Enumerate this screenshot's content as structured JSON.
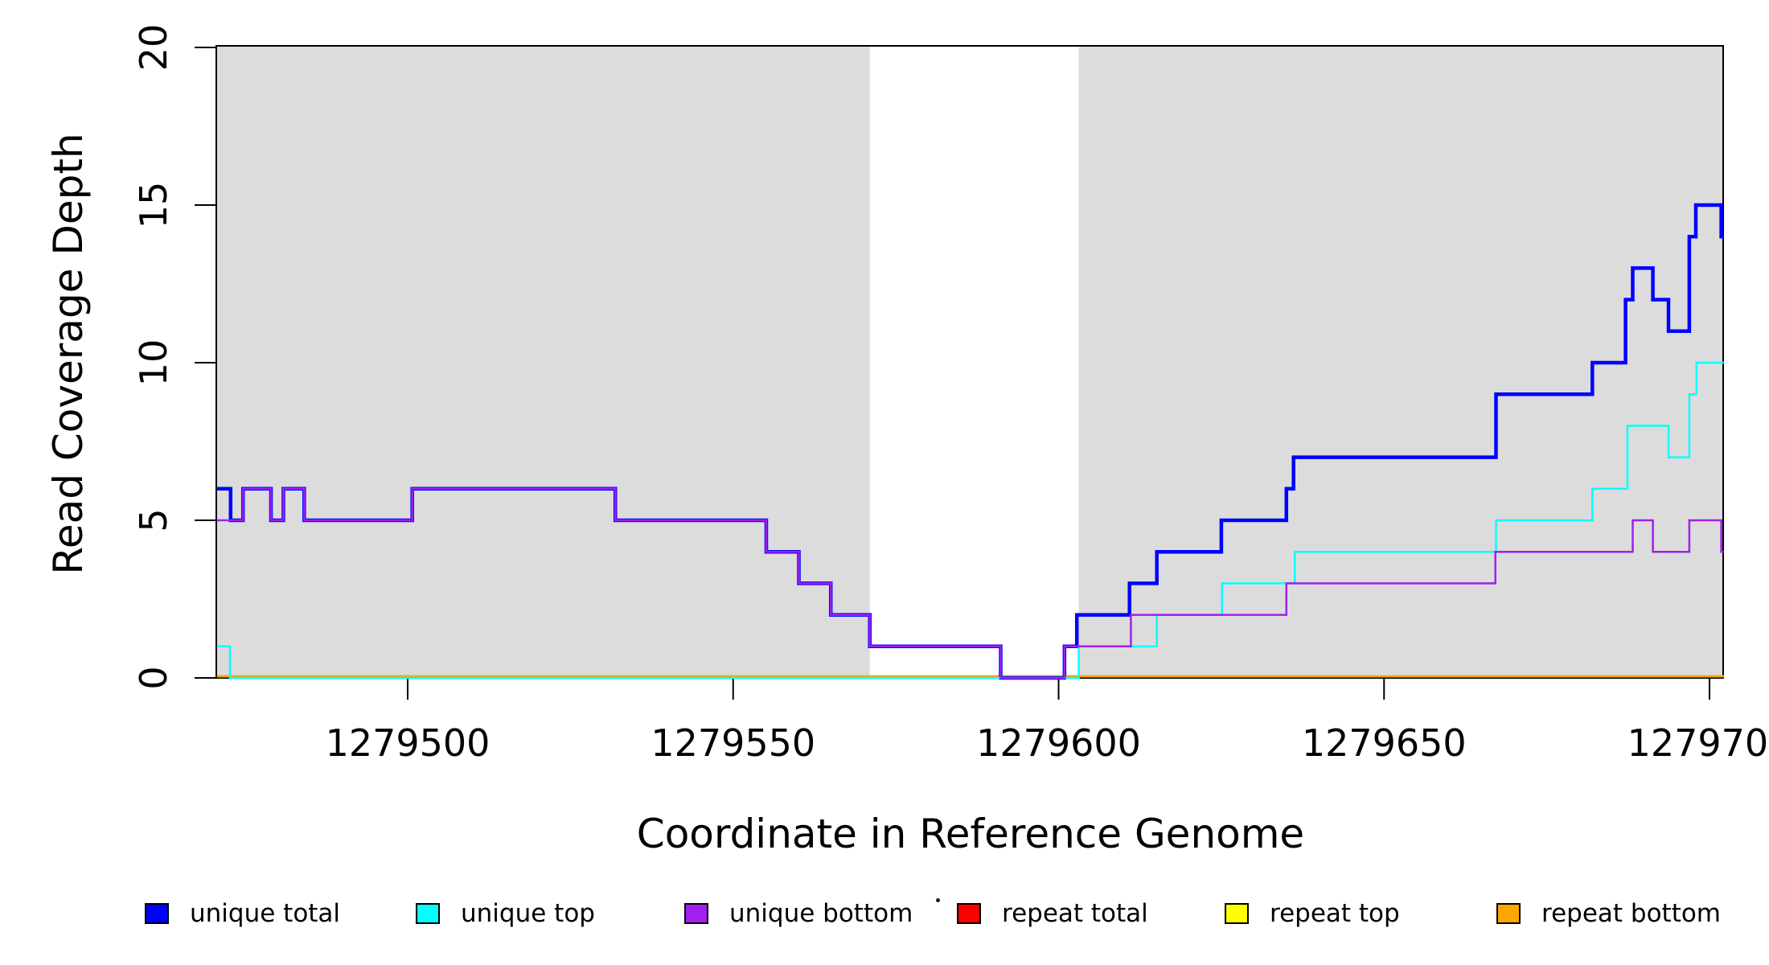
{
  "chart_data": {
    "type": "line",
    "subtype": "step-after-coverage",
    "title": "",
    "xlabel": "Coordinate in Reference Genome",
    "ylabel": "Read Coverage Depth",
    "xlim": [
      1279470.7,
      1279702.2
    ],
    "ylim": [
      0,
      20
    ],
    "x_ticks": [
      1279500,
      1279550,
      1279600,
      1279650,
      1279700
    ],
    "y_ticks": [
      0,
      5,
      10,
      15,
      20
    ],
    "grid": "off",
    "shaded_color": "#DCDCDC",
    "shaded_regions": [
      {
        "x0": 1279470.7,
        "x1": 1279571.0
      },
      {
        "x0": 1279603.1,
        "x1": 1279702.2
      }
    ],
    "draw_order": [
      "repeat total",
      "repeat top",
      "repeat bottom",
      "unique total",
      "unique top",
      "unique bottom"
    ],
    "series": [
      {
        "name": "unique total",
        "color": "#0000FF",
        "width": 4.5,
        "steps": [
          [
            1279470.7,
            6
          ],
          [
            1279472.8,
            5
          ],
          [
            1279474.7,
            6
          ],
          [
            1279479.0,
            5
          ],
          [
            1279480.9,
            6
          ],
          [
            1279484.1,
            5
          ],
          [
            1279500.7,
            6
          ],
          [
            1279531.9,
            5
          ],
          [
            1279555.1,
            4
          ],
          [
            1279560.1,
            3
          ],
          [
            1279565.0,
            2
          ],
          [
            1279571.0,
            1
          ],
          [
            1279591.1,
            0
          ],
          [
            1279600.9,
            1
          ],
          [
            1279602.8,
            2
          ],
          [
            1279610.9,
            3
          ],
          [
            1279615.1,
            4
          ],
          [
            1279625.0,
            5
          ],
          [
            1279635.0,
            6
          ],
          [
            1279636.1,
            7
          ],
          [
            1279667.2,
            9
          ],
          [
            1279682.0,
            10
          ],
          [
            1279687.1,
            12
          ],
          [
            1279688.2,
            13
          ],
          [
            1279691.3,
            12
          ],
          [
            1279693.7,
            11
          ],
          [
            1279696.9,
            14
          ],
          [
            1279697.9,
            15
          ],
          [
            1279701.8,
            14
          ]
        ]
      },
      {
        "name": "unique top",
        "color": "#00FFFF",
        "width": 2.5,
        "steps": [
          [
            1279470.7,
            1
          ],
          [
            1279472.7,
            0
          ],
          [
            1279603.1,
            1
          ],
          [
            1279615.1,
            2
          ],
          [
            1279625.1,
            3
          ],
          [
            1279636.3,
            4
          ],
          [
            1279667.2,
            5
          ],
          [
            1279682.0,
            6
          ],
          [
            1279687.4,
            8
          ],
          [
            1279693.7,
            7
          ],
          [
            1279696.9,
            9
          ],
          [
            1279698.0,
            10
          ]
        ]
      },
      {
        "name": "unique bottom",
        "color": "#A020F0",
        "width": 2.5,
        "steps": [
          [
            1279470.7,
            5
          ],
          [
            1279474.7,
            6
          ],
          [
            1279479.0,
            5
          ],
          [
            1279480.9,
            6
          ],
          [
            1279484.1,
            5
          ],
          [
            1279500.7,
            6
          ],
          [
            1279531.9,
            5
          ],
          [
            1279555.1,
            4
          ],
          [
            1279560.1,
            3
          ],
          [
            1279565.0,
            2
          ],
          [
            1279571.0,
            1
          ],
          [
            1279591.1,
            0
          ],
          [
            1279600.9,
            1
          ],
          [
            1279611.1,
            2
          ],
          [
            1279635.0,
            3
          ],
          [
            1279667.1,
            4
          ],
          [
            1279688.2,
            5
          ],
          [
            1279691.3,
            4
          ],
          [
            1279696.9,
            5
          ],
          [
            1279701.8,
            4
          ]
        ]
      },
      {
        "name": "repeat total",
        "color": "#FF0000",
        "width": 2.5,
        "steps": [
          [
            1279470.7,
            0
          ]
        ]
      },
      {
        "name": "repeat top",
        "color": "#FFFF00",
        "width": 2.5,
        "steps": [
          [
            1279470.7,
            0
          ]
        ]
      },
      {
        "name": "repeat bottom",
        "color": "#FFA500",
        "width": 2.5,
        "steps": [
          [
            1279470.7,
            0
          ]
        ]
      }
    ]
  },
  "legend": {
    "items": [
      {
        "label": "unique total",
        "color": "#0000FF"
      },
      {
        "label": "unique top",
        "color": "#00FFFF"
      },
      {
        "label": "unique bottom",
        "color": "#A020F0"
      },
      {
        "label": "repeat total",
        "color": "#FF0000"
      },
      {
        "label": "repeat top",
        "color": "#FFFF00"
      },
      {
        "label": "repeat bottom",
        "color": "#FFA500"
      }
    ]
  }
}
